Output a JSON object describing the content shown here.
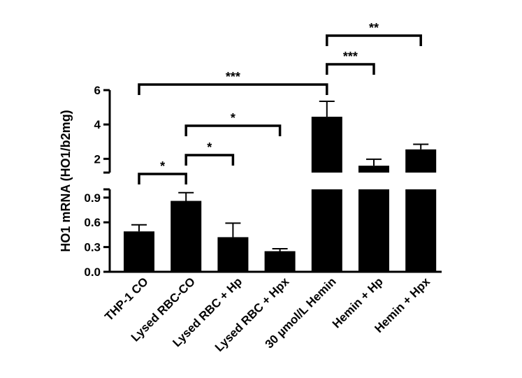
{
  "chart_data": {
    "type": "bar",
    "ylabel": "HO1 mRNA (HO1/b2mg)",
    "axis_break": true,
    "segments": {
      "lower": {
        "ylim": [
          0,
          1.0
        ],
        "ticks": [
          0.0,
          0.3,
          0.6,
          0.9
        ],
        "tick_labels": [
          "0.0",
          "0.3",
          "0.6",
          "0.9"
        ]
      },
      "upper": {
        "ylim": [
          1.2,
          6.0
        ],
        "ticks": [
          2,
          4,
          6
        ],
        "tick_labels": [
          "2",
          "4",
          "6"
        ]
      }
    },
    "categories": [
      "THP-1 CO",
      "Lysed RBC-CO",
      "Lysed RBC + Hp",
      "Lysed RBC + Hpx",
      "30 µmol/L Hemin",
      "Hemin + Hp",
      "Hemin + Hpx"
    ],
    "values": [
      0.49,
      0.86,
      0.42,
      0.25,
      4.45,
      1.6,
      2.55
    ],
    "errors": [
      0.08,
      0.1,
      0.17,
      0.03,
      0.9,
      0.38,
      0.3
    ],
    "significance": [
      {
        "from": 1,
        "to": 2,
        "label": "*"
      },
      {
        "from": 2,
        "to": 3,
        "label": "*"
      },
      {
        "from": 2,
        "to": 4,
        "label": "*"
      },
      {
        "from": 1,
        "to": 5,
        "label": "***"
      },
      {
        "from": 5,
        "to": 6,
        "label": "***"
      },
      {
        "from": 5,
        "to": 7,
        "label": "**"
      }
    ],
    "bar_color": "#000000",
    "grid": false
  }
}
